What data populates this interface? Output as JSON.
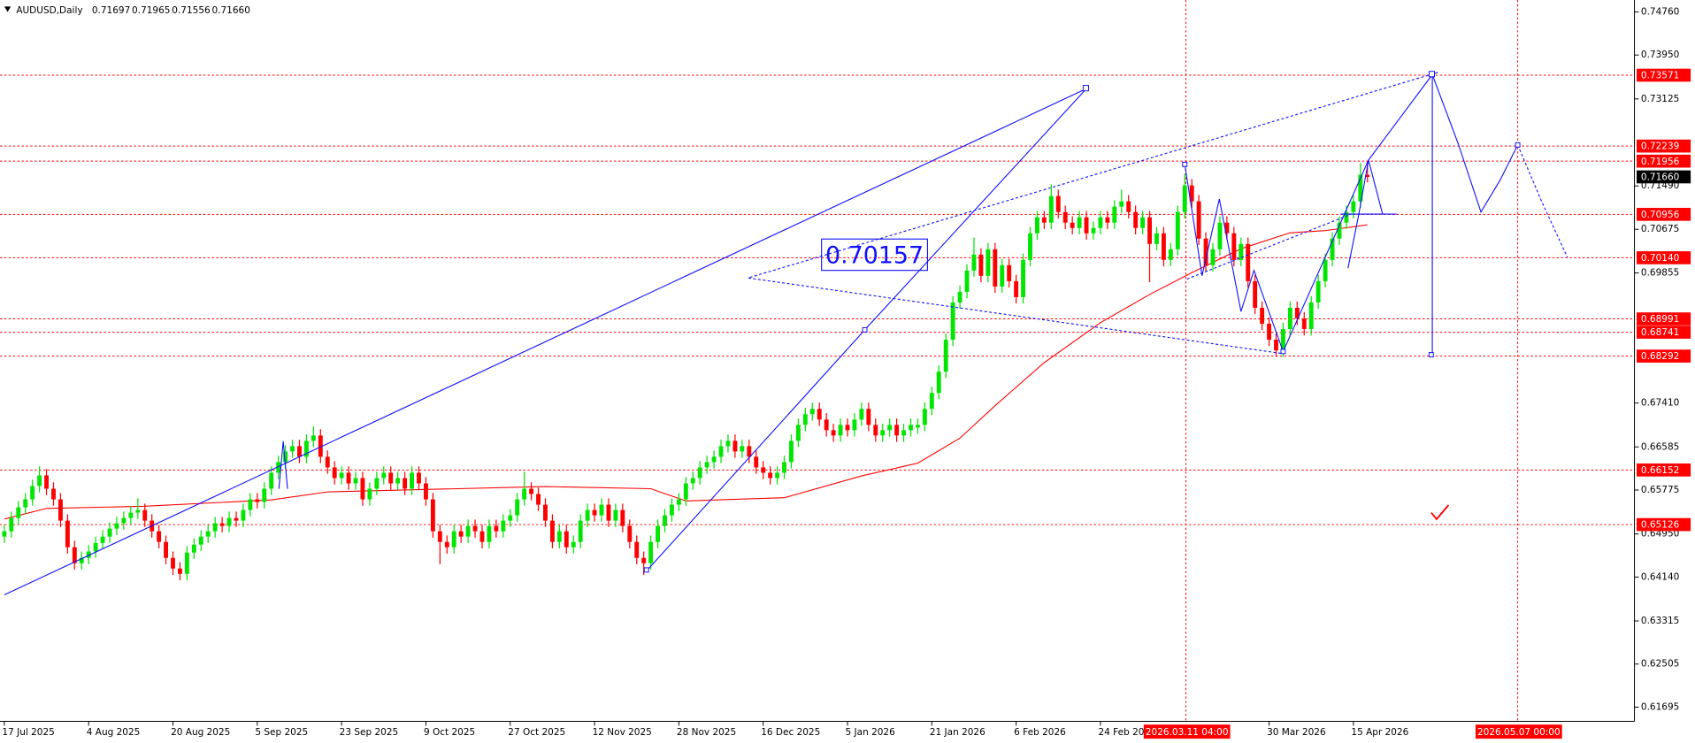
{
  "chart_data": {
    "type": "candlestick",
    "title": "AUDUSD,Daily",
    "ohlc_labels": [
      "0.71697",
      "0.71965",
      "0.71556",
      "0.71660"
    ],
    "ylim": [
      0.61448,
      0.74984
    ],
    "yticks": [
      {
        "value": 0.7476,
        "label": "0.74760"
      },
      {
        "value": 0.7395,
        "label": "0.73950"
      },
      0.73125,
      {
        "value": 0.7149,
        "label": "0.71490"
      },
      0.70675,
      0.69855,
      {
        "value": 0.6741,
        "label": "0.67410"
      },
      0.66585,
      0.65775,
      {
        "value": 0.6495,
        "label": "0.64950"
      },
      {
        "value": 0.6414,
        "label": "0.64140"
      },
      0.63315,
      0.62505,
      0.61695
    ],
    "levels": [
      0.73571,
      0.72239,
      0.71956,
      0.70956,
      {
        "value": 0.7014,
        "label": "0.70140"
      },
      0.68991,
      0.68741,
      0.68292,
      0.66152,
      0.65126
    ],
    "level_color": "#ff0000",
    "current_price": {
      "value": 0.7166,
      "label": "0.71660"
    },
    "date_labels": [
      "17 Jul 2025",
      "4 Aug 2025",
      "20 Aug 2025",
      "5 Sep 2025",
      "23 Sep 2025",
      "9 Oct 2025",
      "27 Oct 2025",
      "12 Nov 2025",
      "28 Nov 2025",
      "16 Dec 2025",
      "5 Jan 2026",
      "21 Jan 2026",
      "6 Feb 2026",
      "24 Feb 2026",
      "30 Mar 2026",
      "15 Apr 2026"
    ],
    "markers": [
      "2026.03.11 04:00",
      "2026.05.07 00:00"
    ],
    "annotation": "0.70157",
    "up_color": "#00e600",
    "down_color": "#ff0000",
    "candles": [
      [
        0.649,
        0.6512,
        0.6478,
        0.65
      ],
      [
        0.65,
        0.6537,
        0.6488,
        0.6525
      ],
      [
        0.6525,
        0.6557,
        0.6513,
        0.6545
      ],
      [
        0.6545,
        0.6572,
        0.6533,
        0.656
      ],
      [
        0.656,
        0.6597,
        0.6548,
        0.6585
      ],
      [
        0.6585,
        0.6622,
        0.6573,
        0.6605
      ],
      [
        0.6605,
        0.6617,
        0.6568,
        0.658
      ],
      [
        0.658,
        0.6592,
        0.6548,
        0.656
      ],
      [
        0.656,
        0.6572,
        0.6508,
        0.652
      ],
      [
        0.652,
        0.6532,
        0.6458,
        0.647
      ],
      [
        0.647,
        0.6482,
        0.6428,
        0.644
      ],
      [
        0.644,
        0.6462,
        0.6428,
        0.645
      ],
      [
        0.645,
        0.6474,
        0.6438,
        0.6462
      ],
      [
        0.6462,
        0.649,
        0.645,
        0.6478
      ],
      [
        0.6478,
        0.6502,
        0.6466,
        0.649
      ],
      [
        0.649,
        0.6517,
        0.6478,
        0.6505
      ],
      [
        0.6505,
        0.6527,
        0.6493,
        0.6515
      ],
      [
        0.6515,
        0.6537,
        0.6503,
        0.6525
      ],
      [
        0.6525,
        0.6547,
        0.6513,
        0.6535
      ],
      [
        0.6535,
        0.6562,
        0.6523,
        0.654
      ],
      [
        0.654,
        0.6552,
        0.6508,
        0.652
      ],
      [
        0.652,
        0.6532,
        0.6488,
        0.65
      ],
      [
        0.65,
        0.6512,
        0.6468,
        0.648
      ],
      [
        0.648,
        0.6492,
        0.6438,
        0.645
      ],
      [
        0.645,
        0.6462,
        0.6418,
        0.643
      ],
      [
        0.643,
        0.6442,
        0.6408,
        0.642
      ],
      [
        0.642,
        0.6472,
        0.6408,
        0.646
      ],
      [
        0.646,
        0.6487,
        0.6448,
        0.6475
      ],
      [
        0.6475,
        0.6502,
        0.6463,
        0.649
      ],
      [
        0.649,
        0.6512,
        0.6478,
        0.65
      ],
      [
        0.65,
        0.6527,
        0.6488,
        0.6515
      ],
      [
        0.6515,
        0.6527,
        0.6498,
        0.651
      ],
      [
        0.651,
        0.6537,
        0.6498,
        0.6525
      ],
      [
        0.6525,
        0.6537,
        0.6508,
        0.652
      ],
      [
        0.652,
        0.6552,
        0.6508,
        0.654
      ],
      [
        0.654,
        0.6572,
        0.6528,
        0.656
      ],
      [
        0.656,
        0.6572,
        0.6543,
        0.6555
      ],
      [
        0.6555,
        0.6592,
        0.6543,
        0.658
      ],
      [
        0.658,
        0.6622,
        0.6568,
        0.661
      ],
      [
        0.661,
        0.6642,
        0.6598,
        0.663
      ],
      [
        0.663,
        0.6662,
        0.6618,
        0.665
      ],
      [
        0.665,
        0.6672,
        0.6638,
        0.666
      ],
      [
        0.666,
        0.6672,
        0.6628,
        0.664
      ],
      [
        0.664,
        0.6682,
        0.6628,
        0.667
      ],
      [
        0.667,
        0.6697,
        0.6658,
        0.668
      ],
      [
        0.668,
        0.6692,
        0.6628,
        0.664
      ],
      [
        0.664,
        0.6652,
        0.6608,
        0.662
      ],
      [
        0.662,
        0.6632,
        0.6588,
        0.66
      ],
      [
        0.66,
        0.6622,
        0.6588,
        0.661
      ],
      [
        0.661,
        0.6622,
        0.6578,
        0.659
      ],
      [
        0.659,
        0.6612,
        0.6578,
        0.66
      ],
      [
        0.66,
        0.6612,
        0.6548,
        0.656
      ],
      [
        0.656,
        0.6592,
        0.6548,
        0.658
      ],
      [
        0.658,
        0.6612,
        0.6568,
        0.66
      ],
      [
        0.66,
        0.6622,
        0.6588,
        0.661
      ],
      [
        0.661,
        0.6622,
        0.6578,
        0.659
      ],
      [
        0.659,
        0.6612,
        0.6578,
        0.66
      ],
      [
        0.66,
        0.6612,
        0.6568,
        0.658
      ],
      [
        0.658,
        0.6622,
        0.6568,
        0.661
      ],
      [
        0.661,
        0.6622,
        0.6578,
        0.659
      ],
      [
        0.659,
        0.6602,
        0.6548,
        0.656
      ],
      [
        0.656,
        0.6572,
        0.6488,
        0.65
      ],
      [
        0.65,
        0.6512,
        0.6438,
        0.648
      ],
      [
        0.648,
        0.6492,
        0.6458,
        0.647
      ],
      [
        0.647,
        0.6512,
        0.6458,
        0.65
      ],
      [
        0.65,
        0.6512,
        0.6478,
        0.649
      ],
      [
        0.649,
        0.6522,
        0.6478,
        0.651
      ],
      [
        0.651,
        0.6522,
        0.6488,
        0.65
      ],
      [
        0.65,
        0.6512,
        0.6468,
        0.648
      ],
      [
        0.648,
        0.6522,
        0.6468,
        0.651
      ],
      [
        0.651,
        0.6522,
        0.6488,
        0.65
      ],
      [
        0.65,
        0.6532,
        0.6488,
        0.652
      ],
      [
        0.652,
        0.6542,
        0.6508,
        0.653
      ],
      [
        0.653,
        0.6572,
        0.6518,
        0.656
      ],
      [
        0.656,
        0.6612,
        0.6548,
        0.658
      ],
      [
        0.658,
        0.6592,
        0.6558,
        0.657
      ],
      [
        0.657,
        0.6582,
        0.6538,
        0.655
      ],
      [
        0.655,
        0.6562,
        0.6508,
        0.652
      ],
      [
        0.652,
        0.6532,
        0.6468,
        0.648
      ],
      [
        0.648,
        0.6512,
        0.6468,
        0.65
      ],
      [
        0.65,
        0.6512,
        0.6458,
        0.647
      ],
      [
        0.647,
        0.6492,
        0.6458,
        0.648
      ],
      [
        0.648,
        0.6532,
        0.6468,
        0.652
      ],
      [
        0.652,
        0.6552,
        0.6508,
        0.654
      ],
      [
        0.654,
        0.6552,
        0.6518,
        0.653
      ],
      [
        0.653,
        0.6562,
        0.6518,
        0.655
      ],
      [
        0.655,
        0.6562,
        0.6508,
        0.652
      ],
      [
        0.652,
        0.6552,
        0.6508,
        0.654
      ],
      [
        0.654,
        0.6552,
        0.6498,
        0.651
      ],
      [
        0.651,
        0.6522,
        0.6468,
        0.648
      ],
      [
        0.648,
        0.6492,
        0.6438,
        0.645
      ],
      [
        0.645,
        0.6462,
        0.6418,
        0.644
      ],
      [
        0.644,
        0.6492,
        0.6428,
        0.648
      ],
      [
        0.648,
        0.6522,
        0.6468,
        0.651
      ],
      [
        0.651,
        0.6542,
        0.6498,
        0.653
      ],
      [
        0.653,
        0.6562,
        0.6518,
        0.655
      ],
      [
        0.655,
        0.6572,
        0.6538,
        0.656
      ],
      [
        0.656,
        0.6602,
        0.6548,
        0.659
      ],
      [
        0.659,
        0.6612,
        0.6578,
        0.66
      ],
      [
        0.66,
        0.6632,
        0.6588,
        0.662
      ],
      [
        0.662,
        0.6642,
        0.6608,
        0.663
      ],
      [
        0.663,
        0.6652,
        0.6618,
        0.664
      ],
      [
        0.664,
        0.6672,
        0.6628,
        0.666
      ],
      [
        0.666,
        0.6682,
        0.6648,
        0.667
      ],
      [
        0.667,
        0.6682,
        0.6638,
        0.665
      ],
      [
        0.665,
        0.6672,
        0.6638,
        0.666
      ],
      [
        0.666,
        0.6672,
        0.6628,
        0.664
      ],
      [
        0.664,
        0.6652,
        0.6608,
        0.662
      ],
      [
        0.662,
        0.6632,
        0.6598,
        0.661
      ],
      [
        0.661,
        0.6622,
        0.6588,
        0.66
      ],
      [
        0.66,
        0.6622,
        0.6588,
        0.661
      ],
      [
        0.661,
        0.6642,
        0.6598,
        0.663
      ],
      [
        0.663,
        0.6682,
        0.6618,
        0.667
      ],
      [
        0.667,
        0.6712,
        0.6658,
        0.67
      ],
      [
        0.67,
        0.6732,
        0.6688,
        0.672
      ],
      [
        0.672,
        0.6742,
        0.6708,
        0.673
      ],
      [
        0.673,
        0.6742,
        0.6698,
        0.671
      ],
      [
        0.671,
        0.6722,
        0.6678,
        0.669
      ],
      [
        0.669,
        0.6702,
        0.6668,
        0.668
      ],
      [
        0.668,
        0.6712,
        0.6668,
        0.67
      ],
      [
        0.67,
        0.6712,
        0.6678,
        0.669
      ],
      [
        0.669,
        0.6722,
        0.6678,
        0.671
      ],
      [
        0.671,
        0.6742,
        0.6698,
        0.673
      ],
      [
        0.673,
        0.6742,
        0.6688,
        0.67
      ],
      [
        0.67,
        0.6712,
        0.6668,
        0.668
      ],
      [
        0.668,
        0.6702,
        0.6668,
        0.669
      ],
      [
        0.669,
        0.6712,
        0.6678,
        0.67
      ],
      [
        0.67,
        0.6712,
        0.6668,
        0.668
      ],
      [
        0.668,
        0.6702,
        0.6668,
        0.669
      ],
      [
        0.669,
        0.6712,
        0.6678,
        0.67
      ],
      [
        0.6695,
        0.6712,
        0.6683,
        0.67
      ],
      [
        0.67,
        0.6742,
        0.6688,
        0.673
      ],
      [
        0.673,
        0.6772,
        0.6718,
        0.676
      ],
      [
        0.676,
        0.6812,
        0.6748,
        0.68
      ],
      [
        0.68,
        0.6872,
        0.6788,
        0.686
      ],
      [
        0.686,
        0.6942,
        0.6848,
        0.693
      ],
      [
        0.693,
        0.6962,
        0.6918,
        0.695
      ],
      [
        0.695,
        0.7002,
        0.6938,
        0.699
      ],
      [
        0.699,
        0.7052,
        0.6978,
        0.702
      ],
      [
        0.702,
        0.7032,
        0.6968,
        0.698
      ],
      [
        0.698,
        0.7042,
        0.6968,
        0.703
      ],
      [
        0.703,
        0.7042,
        0.6948,
        0.696
      ],
      [
        0.696,
        0.7012,
        0.6948,
        0.7
      ],
      [
        0.7,
        0.7012,
        0.6958,
        0.697
      ],
      [
        0.697,
        0.6982,
        0.6928,
        0.694
      ],
      [
        0.694,
        0.7022,
        0.6928,
        0.701
      ],
      [
        0.701,
        0.7072,
        0.6998,
        0.706
      ],
      [
        0.706,
        0.7102,
        0.7048,
        0.709
      ],
      [
        0.709,
        0.7102,
        0.7068,
        0.708
      ],
      [
        0.708,
        0.7152,
        0.7068,
        0.713
      ],
      [
        0.713,
        0.7142,
        0.7088,
        0.71
      ],
      [
        0.71,
        0.7112,
        0.7068,
        0.708
      ],
      [
        0.708,
        0.7092,
        0.7058,
        0.707
      ],
      [
        0.707,
        0.7102,
        0.7058,
        0.709
      ],
      [
        0.709,
        0.7102,
        0.7048,
        0.706
      ],
      [
        0.706,
        0.7082,
        0.7048,
        0.707
      ],
      [
        0.707,
        0.7102,
        0.7058,
        0.709
      ],
      [
        0.709,
        0.7102,
        0.7068,
        0.708
      ],
      [
        0.708,
        0.7122,
        0.7068,
        0.711
      ],
      [
        0.711,
        0.7142,
        0.7098,
        0.712
      ],
      [
        0.712,
        0.7132,
        0.7088,
        0.71
      ],
      [
        0.71,
        0.7112,
        0.7058,
        0.707
      ],
      [
        0.707,
        0.7102,
        0.7058,
        0.709
      ],
      [
        0.709,
        0.7102,
        0.6968,
        0.704
      ],
      [
        0.704,
        0.7072,
        0.7028,
        0.706
      ],
      [
        0.706,
        0.7072,
        0.6998,
        0.701
      ],
      [
        0.701,
        0.7042,
        0.6998,
        0.703
      ],
      [
        0.703,
        0.7112,
        0.7018,
        0.71
      ],
      [
        0.71,
        0.7172,
        0.7088,
        0.715
      ],
      [
        0.715,
        0.7162,
        0.7108,
        0.712
      ],
      [
        0.712,
        0.7132,
        0.7038,
        0.705
      ],
      [
        0.705,
        0.7062,
        0.6988,
        0.7
      ],
      [
        0.7,
        0.7042,
        0.6988,
        0.703
      ],
      [
        0.703,
        0.7092,
        0.7018,
        0.708
      ],
      [
        0.708,
        0.7092,
        0.7048,
        0.706
      ],
      [
        0.706,
        0.7072,
        0.6998,
        0.701
      ],
      [
        0.701,
        0.7052,
        0.6998,
        0.704
      ],
      [
        0.704,
        0.7052,
        0.6958,
        0.697
      ],
      [
        0.697,
        0.6982,
        0.6908,
        0.692
      ],
      [
        0.692,
        0.6932,
        0.6878,
        0.689
      ],
      [
        0.689,
        0.6902,
        0.6848,
        0.686
      ],
      [
        0.686,
        0.6872,
        0.6828,
        0.684
      ],
      [
        0.684,
        0.6892,
        0.6828,
        0.688
      ],
      [
        0.688,
        0.6932,
        0.6868,
        0.692
      ],
      [
        0.692,
        0.6932,
        0.6888,
        0.69
      ],
      [
        0.69,
        0.6912,
        0.6868,
        0.688
      ],
      [
        0.688,
        0.6942,
        0.6868,
        0.693
      ],
      [
        0.693,
        0.6982,
        0.6918,
        0.697
      ],
      [
        0.697,
        0.7022,
        0.6958,
        0.701
      ],
      [
        0.701,
        0.7062,
        0.6998,
        0.705
      ],
      [
        0.705,
        0.7092,
        0.7038,
        0.708
      ],
      [
        0.708,
        0.7112,
        0.7068,
        0.71
      ],
      [
        0.71,
        0.7132,
        0.7088,
        0.712
      ],
      [
        0.712,
        0.7192,
        0.7108,
        0.717
      ],
      [
        0.71697,
        0.71965,
        0.71556,
        0.7166
      ]
    ],
    "ma": {
      "color": "#ff0000",
      "x": [
        0,
        6,
        20,
        38,
        46,
        77,
        92,
        97,
        111,
        122,
        130,
        136,
        141,
        148,
        156,
        163,
        169,
        176,
        183,
        188,
        194
      ],
      "values": [
        0.6523,
        0.6543,
        0.6547,
        0.6559,
        0.6574,
        0.6584,
        0.658,
        0.6557,
        0.6563,
        0.6604,
        0.6628,
        0.6675,
        0.6736,
        0.6817,
        0.6892,
        0.6945,
        0.6986,
        0.7031,
        0.7061,
        0.7065,
        0.7076
      ]
    }
  }
}
